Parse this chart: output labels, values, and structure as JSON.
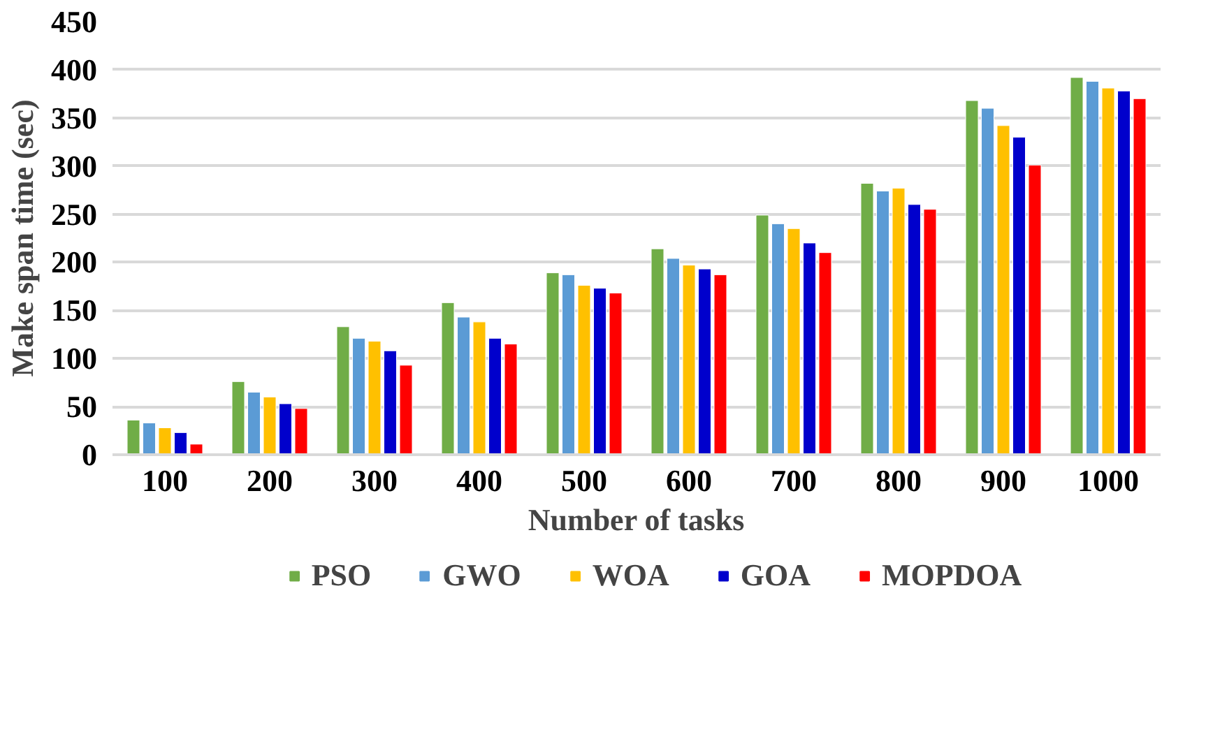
{
  "chart_data": {
    "type": "bar",
    "xlabel": "Number of tasks",
    "ylabel": "Make span time (sec)",
    "categories": [
      "100",
      "200",
      "300",
      "400",
      "500",
      "600",
      "700",
      "800",
      "900",
      "1000"
    ],
    "series": [
      {
        "name": "PSO",
        "color": "#70ad47",
        "values": [
          36,
          76,
          133,
          158,
          189,
          214,
          249,
          282,
          368,
          392
        ]
      },
      {
        "name": "GWO",
        "color": "#5b9bd5",
        "values": [
          33,
          65,
          121,
          143,
          187,
          204,
          240,
          274,
          360,
          388
        ]
      },
      {
        "name": "WOA",
        "color": "#ffc000",
        "values": [
          28,
          60,
          118,
          138,
          176,
          197,
          235,
          277,
          342,
          381
        ]
      },
      {
        "name": "GOA",
        "color": "#0000cc",
        "values": [
          23,
          53,
          108,
          121,
          173,
          193,
          220,
          260,
          330,
          378
        ]
      },
      {
        "name": "MOPDOA",
        "color": "#ff0000",
        "values": [
          11,
          48,
          93,
          115,
          168,
          187,
          210,
          255,
          301,
          370
        ]
      }
    ],
    "ylim": [
      0,
      450
    ],
    "yticks": [
      0,
      50,
      100,
      150,
      200,
      250,
      300,
      350,
      400,
      450
    ],
    "grid": "y",
    "legend": "bottom"
  }
}
